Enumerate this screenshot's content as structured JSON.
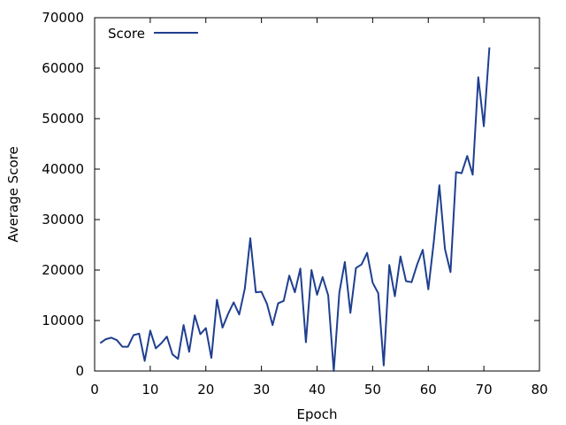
{
  "chart_data": {
    "type": "line",
    "title": "",
    "xlabel": "Epoch",
    "ylabel": "Average Score",
    "xlim": [
      0,
      80
    ],
    "ylim": [
      0,
      70000
    ],
    "xticks": [
      0,
      10,
      20,
      30,
      40,
      50,
      60,
      70,
      80
    ],
    "yticks": [
      0,
      10000,
      20000,
      30000,
      40000,
      50000,
      60000,
      70000
    ],
    "grid": false,
    "legend_position": "top-left",
    "series": [
      {
        "name": "Score",
        "color": "#1f3f8f",
        "x": [
          1,
          2,
          3,
          4,
          5,
          6,
          7,
          8,
          9,
          10,
          11,
          12,
          13,
          14,
          15,
          16,
          17,
          18,
          19,
          20,
          21,
          22,
          23,
          24,
          25,
          26,
          27,
          28,
          29,
          30,
          31,
          32,
          33,
          34,
          35,
          36,
          37,
          38,
          39,
          40,
          41,
          42,
          43,
          44,
          45,
          46,
          47,
          48,
          49,
          50,
          51,
          52,
          53,
          54,
          55,
          56,
          57,
          58,
          59,
          60,
          61,
          62,
          63,
          64,
          65,
          66,
          67,
          68,
          69,
          70,
          71
        ],
        "y": [
          5500,
          6300,
          6600,
          6100,
          4800,
          4800,
          7100,
          7400,
          2000,
          8000,
          4500,
          5500,
          6800,
          3300,
          2400,
          9100,
          3800,
          11000,
          7300,
          8500,
          2600,
          14100,
          8600,
          11300,
          13600,
          11200,
          16300,
          26300,
          15600,
          15700,
          13300,
          9100,
          13400,
          13900,
          18900,
          15600,
          20300,
          5700,
          20000,
          15100,
          18600,
          15000,
          0,
          15500,
          21600,
          11500,
          20400,
          21100,
          23400,
          17500,
          15400,
          1100,
          21000,
          14800,
          22700,
          17800,
          17600,
          21100,
          24000,
          16200,
          25600,
          36800,
          24200,
          19600,
          39400,
          39200,
          42600,
          38900,
          58200,
          48500,
          64100
        ]
      }
    ]
  }
}
